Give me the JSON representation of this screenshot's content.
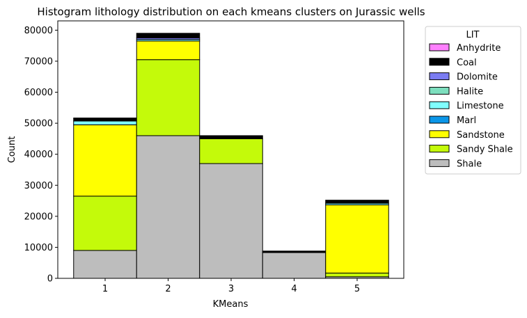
{
  "chart_data": {
    "type": "bar",
    "stacked": true,
    "title": "Histogram lithology distribution on each kmeans clusters on Jurassic wells",
    "xlabel": "KMeans",
    "ylabel": "Count",
    "categories": [
      "1",
      "2",
      "3",
      "4",
      "5"
    ],
    "ylim": [
      0,
      83000
    ],
    "yticks": [
      0,
      10000,
      20000,
      30000,
      40000,
      50000,
      60000,
      70000,
      80000
    ],
    "ytick_labels": [
      "0",
      "10000",
      "20000",
      "30000",
      "40000",
      "50000",
      "60000",
      "70000",
      "80000"
    ],
    "grid": false,
    "legend": {
      "title": "LIT",
      "placement": "outside-right"
    },
    "series": [
      {
        "name": "Shale",
        "color": "#bdbdbd",
        "values": [
          9000,
          46000,
          37000,
          8300,
          500
        ]
      },
      {
        "name": "Sandy Shale",
        "color": "#c4fa0a",
        "values": [
          17500,
          24500,
          8000,
          0,
          1200
        ]
      },
      {
        "name": "Sandstone",
        "color": "#ffff00",
        "values": [
          23000,
          6000,
          0,
          0,
          22000
        ]
      },
      {
        "name": "Marl",
        "color": "#0b96e8",
        "values": [
          0,
          0,
          0,
          0,
          0
        ]
      },
      {
        "name": "Limestone",
        "color": "#80ffff",
        "values": [
          1200,
          500,
          0,
          0,
          500
        ]
      },
      {
        "name": "Halite",
        "color": "#7ddfbe",
        "values": [
          0,
          0,
          0,
          0,
          0
        ]
      },
      {
        "name": "Dolomite",
        "color": "#7b7cf2",
        "values": [
          0,
          500,
          0,
          0,
          0
        ]
      },
      {
        "name": "Coal",
        "color": "#000000",
        "values": [
          1000,
          1500,
          1000,
          500,
          1000
        ]
      },
      {
        "name": "Anhydrite",
        "color": "#ff80ff",
        "values": [
          0,
          0,
          0,
          0,
          0
        ]
      }
    ],
    "legend_order": [
      "Anhydrite",
      "Coal",
      "Dolomite",
      "Halite",
      "Limestone",
      "Marl",
      "Sandstone",
      "Sandy Shale",
      "Shale"
    ]
  }
}
